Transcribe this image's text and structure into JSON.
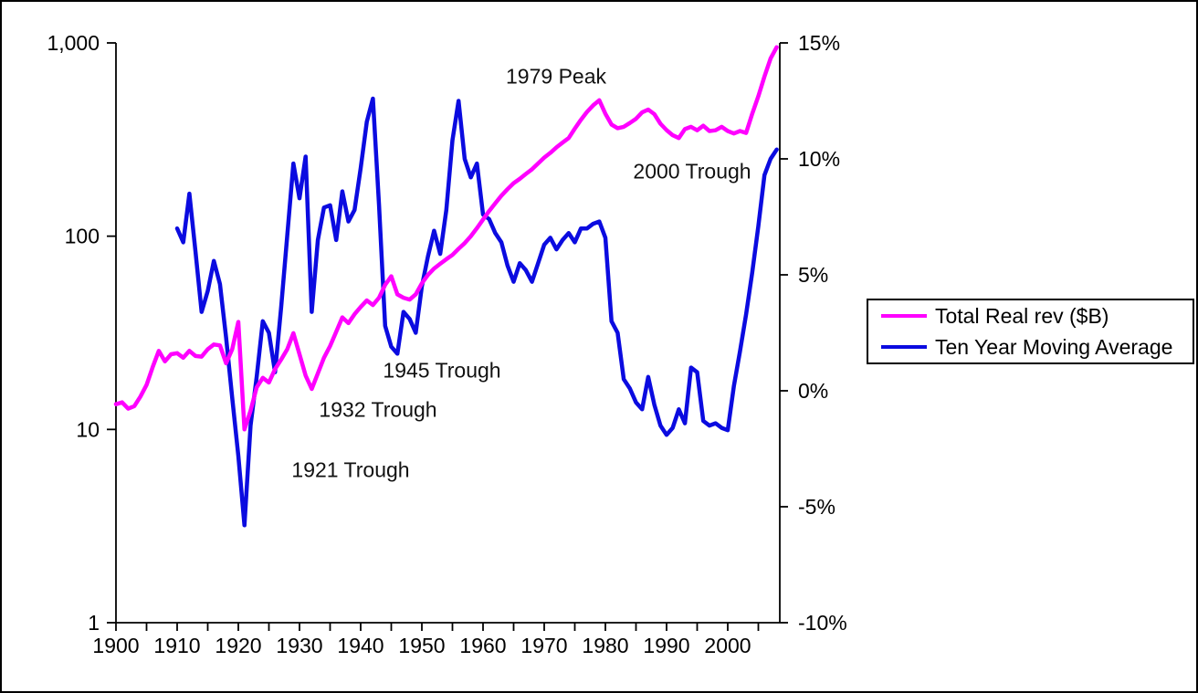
{
  "chart_data": {
    "type": "line",
    "title": "",
    "x_axis": {
      "labels": [
        "1900",
        "1910",
        "1920",
        "1930",
        "1940",
        "1950",
        "1960",
        "1970",
        "1980",
        "1990",
        "2000"
      ],
      "tick_interval_years": 5,
      "range": [
        1900,
        2009
      ],
      "grid": false
    },
    "left_axis": {
      "scale": "log",
      "tick_labels": [
        "1",
        "10",
        "100",
        "1,000"
      ],
      "tick_values": [
        1,
        10,
        100,
        1000
      ],
      "range": [
        1,
        1000
      ]
    },
    "right_axis": {
      "scale": "linear",
      "tick_labels": [
        "15%",
        "10%",
        "5%",
        "0%",
        "-5%",
        "-10%"
      ],
      "tick_values": [
        15,
        10,
        5,
        0,
        -5,
        -10
      ],
      "range": [
        -10,
        15
      ]
    },
    "series": [
      {
        "name": "Total Real rev ($B)",
        "color": "#ff00ff",
        "axis": "left",
        "start_year": 1900,
        "values": [
          13.5,
          13.8,
          12.8,
          13.2,
          14.8,
          17,
          21,
          25.5,
          22.5,
          24.5,
          24.8,
          23.5,
          25.5,
          24,
          23.8,
          26,
          27.5,
          27.2,
          22,
          26,
          36,
          10,
          12.5,
          16.5,
          18.5,
          17.5,
          20.5,
          23,
          26,
          31.5,
          24.5,
          19,
          16.2,
          19.5,
          23.5,
          27,
          32,
          38,
          35.5,
          39.5,
          43,
          46.5,
          44,
          48,
          56,
          62,
          50,
          48,
          47,
          50,
          57,
          63,
          68,
          72,
          76,
          80,
          86,
          92,
          100,
          110,
          122,
          135,
          148,
          162,
          175,
          188,
          198,
          210,
          222,
          238,
          255,
          270,
          288,
          305,
          322,
          360,
          400,
          440,
          475,
          505,
          430,
          378,
          362,
          368,
          385,
          405,
          437,
          452,
          428,
          382,
          354,
          333,
          322,
          358,
          368,
          353,
          373,
          350,
          353,
          368,
          350,
          340,
          350,
          342,
          430,
          530,
          670,
          830,
          950
        ]
      },
      {
        "name": "Ten Year Moving Average",
        "color": "#0b0be0",
        "axis": "right",
        "start_year": 1910,
        "values": [
          7.0,
          6.4,
          8.5,
          6.0,
          3.4,
          4.3,
          5.6,
          4.6,
          2.3,
          -0.3,
          -2.8,
          -5.8,
          -1.5,
          0.6,
          3.0,
          2.5,
          0.8,
          3.6,
          6.7,
          9.8,
          8.3,
          10.1,
          3.4,
          6.5,
          7.9,
          8.0,
          6.5,
          8.6,
          7.3,
          7.8,
          9.6,
          11.6,
          12.6,
          8.0,
          2.8,
          1.9,
          1.6,
          3.4,
          3.1,
          2.5,
          4.5,
          5.8,
          6.9,
          5.9,
          7.8,
          10.8,
          12.5,
          10.0,
          9.2,
          9.8,
          7.6,
          7.4,
          6.8,
          6.4,
          5.4,
          4.7,
          5.5,
          5.2,
          4.7,
          5.5,
          6.3,
          6.6,
          6.1,
          6.5,
          6.8,
          6.4,
          7.0,
          7.0,
          7.2,
          7.3,
          6.6,
          3.0,
          2.5,
          0.5,
          0.1,
          -0.5,
          -0.8,
          0.6,
          -0.6,
          -1.5,
          -1.9,
          -1.6,
          -0.8,
          -1.4,
          1.0,
          0.8,
          -1.3,
          -1.5,
          -1.4,
          -1.6,
          -1.7,
          0.2,
          1.7,
          3.3,
          5.1,
          7.1,
          9.3,
          10.0,
          10.4
        ]
      }
    ],
    "annotations": [
      {
        "text": "1979 Peak"
      },
      {
        "text": "2000 Trough"
      },
      {
        "text": "1945 Trough"
      },
      {
        "text": "1932 Trough"
      },
      {
        "text": "1921 Trough"
      }
    ],
    "legend": {
      "position": "right",
      "items": [
        {
          "label": "Total Real rev ($B)",
          "color": "#ff00ff"
        },
        {
          "label": "Ten Year Moving Average",
          "color": "#0b0be0"
        }
      ]
    },
    "axis_color": "#000000"
  }
}
